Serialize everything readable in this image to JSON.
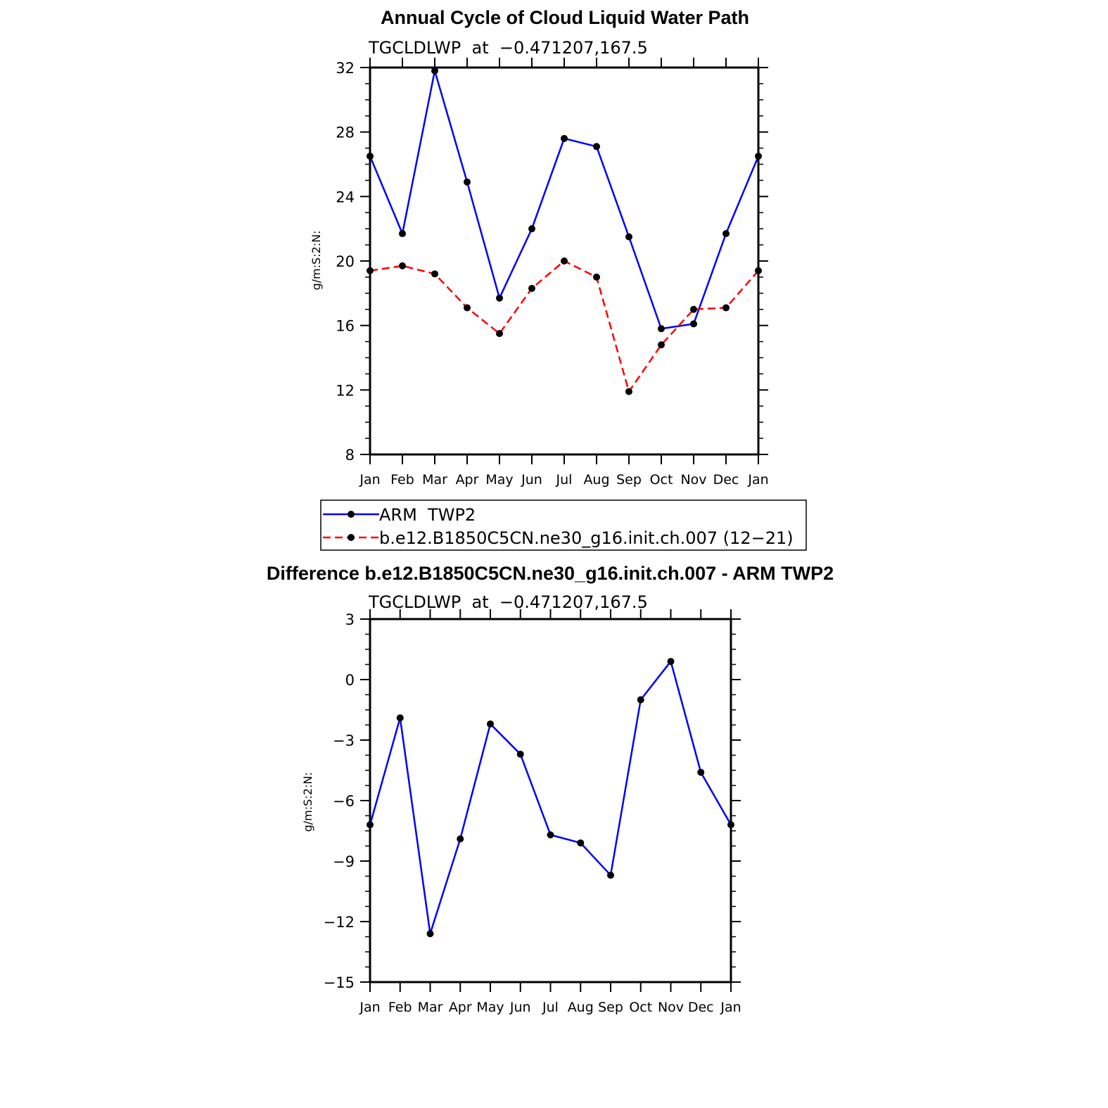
{
  "chart_data": [
    {
      "type": "line",
      "title": "Annual Cycle of Cloud Liquid Water Path",
      "subtitle": "TGCLDLWP  at  −0.471207,167.5",
      "ylabel": "g/m:S:2:N:",
      "xlabel": "",
      "ylim": [
        8,
        32
      ],
      "yticks": [
        "8",
        "12",
        "16",
        "20",
        "24",
        "28",
        "32"
      ],
      "categories": [
        "Jan",
        "Feb",
        "Mar",
        "Apr",
        "May",
        "Jun",
        "Jul",
        "Aug",
        "Sep",
        "Oct",
        "Nov",
        "Dec",
        "Jan"
      ],
      "series": [
        {
          "name": "ARM  TWP2",
          "color": "#0000ff",
          "dash": "solid",
          "values": [
            26.5,
            21.7,
            31.8,
            24.9,
            17.7,
            22.0,
            27.6,
            27.1,
            21.5,
            15.8,
            16.1,
            21.7,
            26.5
          ]
        },
        {
          "name": "b.e12.B1850C5CN.ne30_g16.init.ch.007 (12−21)",
          "color": "#ff0000",
          "dash": "dashed",
          "values": [
            19.4,
            19.7,
            19.2,
            17.1,
            15.5,
            18.3,
            20.0,
            19.0,
            11.9,
            14.8,
            17.0,
            17.1,
            19.4
          ]
        }
      ],
      "legend": "below"
    },
    {
      "type": "line",
      "title": "Difference b.e12.B1850C5CN.ne30_g16.init.ch.007 - ARM TWP2",
      "subtitle": "TGCLDLWP  at  −0.471207,167.5",
      "ylabel": "g/m:S:2:N:",
      "xlabel": "",
      "ylim": [
        -15,
        3
      ],
      "yticks": [
        "−15",
        "−12",
        "−9",
        "−6",
        "−3",
        "0",
        "3"
      ],
      "categories": [
        "Jan",
        "Feb",
        "Mar",
        "Apr",
        "May",
        "Jun",
        "Jul",
        "Aug",
        "Sep",
        "Oct",
        "Nov",
        "Dec",
        "Jan"
      ],
      "series": [
        {
          "name": "Difference",
          "color": "#0000ff",
          "dash": "solid",
          "values": [
            -7.2,
            -1.9,
            -12.6,
            -7.9,
            -2.2,
            -3.7,
            -7.7,
            -8.1,
            -9.7,
            -1.0,
            0.9,
            -4.6,
            -7.2
          ]
        }
      ]
    }
  ]
}
